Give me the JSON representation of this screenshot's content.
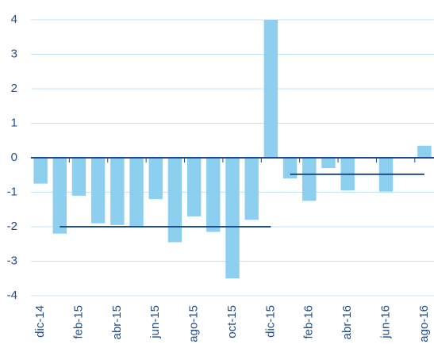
{
  "chart_data": {
    "type": "bar",
    "categories": [
      "dic-14",
      null,
      "feb-15",
      null,
      "abr-15",
      null,
      "jun-15",
      null,
      "ago-15",
      null,
      "oct-15",
      null,
      "dic-15",
      null,
      "feb-16",
      null,
      "abr-16",
      null,
      "jun-16",
      null,
      "ago-16"
    ],
    "values": [
      -0.75,
      -2.2,
      -1.1,
      -1.9,
      -1.95,
      -2.0,
      -1.2,
      -2.45,
      -1.7,
      -2.15,
      -3.5,
      -1.8,
      4.0,
      -0.6,
      -1.25,
      -0.3,
      -0.95,
      0,
      -0.98,
      0,
      0.35
    ],
    "color": "#8ccfee",
    "lines": [
      {
        "color": "#1f4e8c",
        "values": [
          null,
          -2.0,
          -2.0,
          -2.0,
          -2.0,
          -2.0,
          -2.0,
          -2.0,
          -2.0,
          -2.0,
          -2.0,
          -2.0,
          -2.0,
          null,
          null,
          null,
          null,
          null,
          null,
          null,
          null
        ]
      },
      {
        "color": "#1f4e8c",
        "values": [
          null,
          null,
          null,
          null,
          null,
          null,
          null,
          null,
          null,
          null,
          null,
          null,
          null,
          -0.48,
          -0.48,
          -0.48,
          -0.48,
          -0.48,
          -0.48,
          -0.48,
          -0.48
        ]
      }
    ],
    "ylim": [
      -4,
      4
    ],
    "yticks": [
      -4,
      -3,
      -2,
      -1,
      0,
      1,
      2,
      3,
      4
    ],
    "grid": true
  }
}
